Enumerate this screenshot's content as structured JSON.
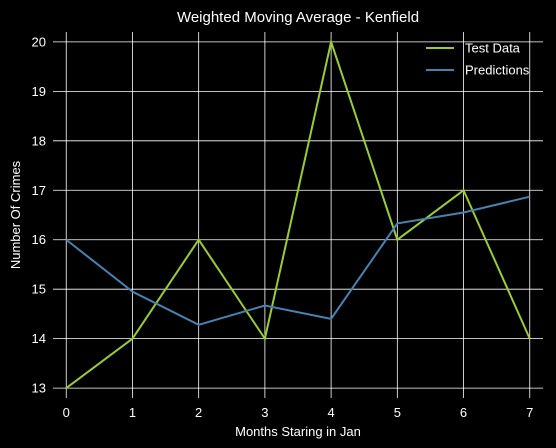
{
  "chart_data": {
    "type": "line",
    "title": "Weighted Moving Average - Kenfield",
    "xlabel": "Months Staring in Jan",
    "ylabel": "Number Of Crimes",
    "x": [
      0,
      1,
      2,
      3,
      4,
      5,
      6,
      7
    ],
    "xlim": [
      -0.2,
      7.2
    ],
    "ylim": [
      12.8,
      20.2
    ],
    "xticks": [
      "0",
      "1",
      "2",
      "3",
      "4",
      "5",
      "6",
      "7"
    ],
    "yticks": [
      "13",
      "14",
      "15",
      "16",
      "17",
      "18",
      "19",
      "20"
    ],
    "grid": true,
    "legend_position": "top-right",
    "series": [
      {
        "name": "Test Data",
        "color": "#9acd32",
        "values": [
          13,
          14,
          16,
          14,
          20,
          16,
          17,
          14
        ]
      },
      {
        "name": "Predictions",
        "color": "#4682b4",
        "values": [
          16,
          14.95,
          14.28,
          14.67,
          14.4,
          16.33,
          16.55,
          16.87
        ]
      }
    ],
    "colors": {
      "background": "#000000",
      "grid": "#ffffff",
      "text": "#ffffff"
    }
  }
}
